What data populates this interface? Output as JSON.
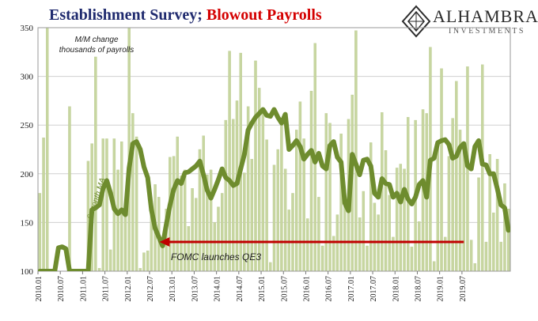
{
  "title": {
    "part1": "Establishment Survey; ",
    "part2": "Blowout Payrolls",
    "color1": "#1f2a6e",
    "color2": "#d40000"
  },
  "logo": {
    "name": "ALHAMBRA",
    "subtitle": "INVESTMENTS"
  },
  "chart_data": {
    "type": "bar",
    "title": "Establishment Survey; Blowout Payrolls",
    "ylim": [
      100,
      350
    ],
    "yticks": [
      100,
      150,
      200,
      250,
      300,
      350
    ],
    "x_tick_labels": [
      "2010.01",
      "2010.07",
      "2011.01",
      "2011.07",
      "2012.01",
      "2012.07",
      "2013.01",
      "2013.07",
      "2014.01",
      "2014.07",
      "2015.01",
      "2015.07",
      "2016.01",
      "2016.07",
      "2017.01",
      "2017.07",
      "2018.01",
      "2018.07",
      "2019.01",
      "2019.07"
    ],
    "annotations": {
      "series_note_line1": "M/M change",
      "series_note_line2": "thousands of payrolls",
      "ma_label": "6-month MA",
      "arrow_label": "FOMC launches QE3"
    },
    "arrow": {
      "from_period": "2019.07",
      "to_period": "2012.10",
      "level": 130,
      "color": "#c00000"
    },
    "colors": {
      "bars": "#c7d6a0",
      "bar_edge": "#b3c486",
      "ma_line": "#6e8c2e",
      "grid": "#d0d0d0"
    },
    "series": [
      {
        "name": "M/M change, thousands of payrolls",
        "start": "2010.01",
        "values": [
          180,
          237,
          350,
          100,
          100,
          100,
          100,
          100,
          269,
          100,
          100,
          100,
          100,
          213,
          231,
          320,
          103,
          236,
          236,
          122,
          236,
          204,
          233,
          162,
          350,
          262,
          238,
          103,
          119,
          121,
          166,
          189,
          176,
          124,
          164,
          217,
          218,
          238,
          198,
          204,
          146,
          185,
          175,
          225,
          239,
          199,
          204,
          150,
          166,
          180,
          255,
          326,
          256,
          275,
          324,
          201,
          269,
          215,
          316,
          288,
          265,
          235,
          109,
          209,
          225,
          251,
          205,
          163,
          180,
          245,
          274,
          236,
          154,
          285,
          334,
          176,
          126,
          262,
          252,
          136,
          158,
          241,
          183,
          256,
          281,
          347,
          155,
          182,
          126,
          232,
          170,
          158,
          263,
          224,
          178,
          135,
          206,
          210,
          205,
          258,
          125,
          255,
          151,
          266,
          262,
          330,
          110,
          232,
          308,
          135,
          218,
          257,
          295,
          245,
          232,
          310,
          132,
          108,
          196,
          312,
          130,
          220,
          160,
          215,
          130,
          190,
          164
        ]
      },
      {
        "name": "6-month MA",
        "start": "2010.01",
        "values": [
          100,
          100,
          100,
          100,
          100,
          124,
          125,
          123,
          100,
          100,
          100,
          100,
          100,
          100,
          163,
          165,
          168,
          185,
          193,
          180,
          164,
          159,
          163,
          158,
          206,
          231,
          233,
          225,
          207,
          196,
          163,
          144,
          135,
          126,
          148,
          168,
          184,
          193,
          190,
          201,
          202,
          205,
          208,
          213,
          199,
          183,
          175,
          184,
          194,
          205,
          196,
          193,
          188,
          190,
          205,
          220,
          245,
          252,
          258,
          262,
          266,
          260,
          259,
          266,
          258,
          252,
          261,
          225,
          229,
          234,
          228,
          215,
          220,
          224,
          212,
          221,
          208,
          205,
          229,
          233,
          217,
          212,
          170,
          162,
          220,
          210,
          199,
          214,
          215,
          208,
          180,
          176,
          195,
          190,
          189,
          176,
          180,
          171,
          184,
          174,
          169,
          176,
          189,
          193,
          176,
          214,
          216,
          232,
          234,
          235,
          230,
          216,
          218,
          227,
          231,
          208,
          205,
          228,
          234,
          210,
          209,
          200,
          200,
          185,
          168,
          165,
          142
        ]
      }
    ]
  }
}
